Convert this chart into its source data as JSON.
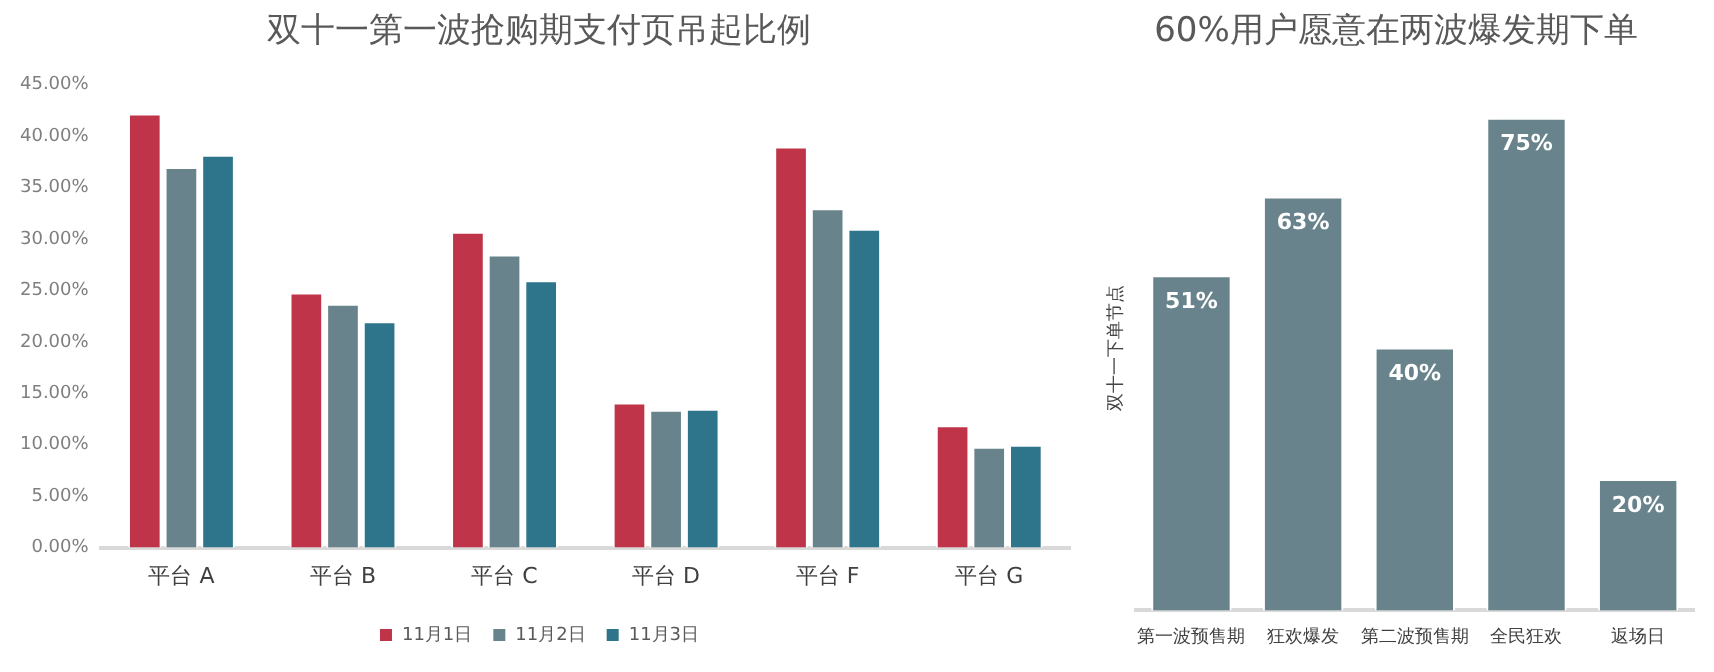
{
  "chart_data": [
    {
      "type": "bar",
      "title": "双十一第一波抢购期支付页吊起比例",
      "categories": [
        "平台 A",
        "平台 B",
        "平台 C",
        "平台 D",
        "平台 F",
        "平台 G"
      ],
      "series": [
        {
          "name": "11月1日",
          "color": "#bf3448",
          "values": [
            42.2,
            24.8,
            30.7,
            14.1,
            39.0,
            11.9
          ]
        },
        {
          "name": "11月2日",
          "color": "#68838b",
          "values": [
            37.0,
            23.7,
            28.5,
            13.4,
            33.0,
            9.8
          ]
        },
        {
          "name": "11月3日",
          "color": "#2e758b",
          "values": [
            38.2,
            22.0,
            26.0,
            13.5,
            31.0,
            10.0
          ]
        }
      ],
      "ylim": [
        0,
        45
      ],
      "yticks": [
        {
          "value": 0,
          "label": "0.00%"
        },
        {
          "value": 5,
          "label": "5.00%"
        },
        {
          "value": 10,
          "label": "10.00%"
        },
        {
          "value": 15,
          "label": "15.00%"
        },
        {
          "value": 20,
          "label": "20.00%"
        },
        {
          "value": 25,
          "label": "25.00%"
        },
        {
          "value": 30,
          "label": "30.00%"
        },
        {
          "value": 35,
          "label": "35.00%"
        },
        {
          "value": 40,
          "label": "40.00%"
        },
        {
          "value": 45,
          "label": "45.00%"
        }
      ],
      "legend": "bottom"
    },
    {
      "type": "bar",
      "title": "60%用户愿意在两波爆发期下单",
      "ylabel": "双十一下单节点",
      "categories": [
        "第一波预售期",
        "狂欢爆发",
        "第二波预售期",
        "全民狂欢",
        "返场日"
      ],
      "values": [
        51,
        63,
        40,
        75,
        20
      ],
      "color": "#68838b",
      "value_labels": [
        "51%",
        "63%",
        "40%",
        "75%",
        "20%"
      ],
      "tick_labels": "x"
    }
  ]
}
